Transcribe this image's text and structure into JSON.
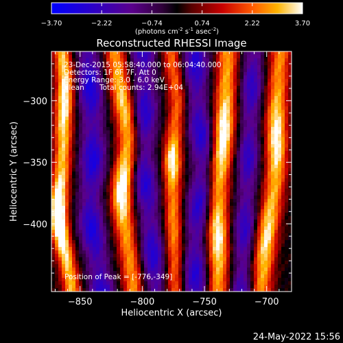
{
  "chart_data": {
    "type": "heatmap",
    "title": "Reconstructed RHESSI Image",
    "xlabel": "Heliocentric X (arcsec)",
    "ylabel": "Heliocentric Y (arcsec)",
    "xlim": [
      -873,
      -680
    ],
    "ylim": [
      -455,
      -260
    ],
    "x_ticks": [
      -850,
      -800,
      -750,
      -700
    ],
    "y_ticks": [
      -300,
      -350,
      -400
    ],
    "colorbar": {
      "range": [
        -3.7,
        3.7
      ],
      "tick_labels": [
        "-3.70",
        "-2.22",
        "-0.74",
        "0.74",
        "2.22",
        "3.70"
      ],
      "unit_parts": [
        "(photons cm",
        "-2",
        " s",
        "-1",
        " asec",
        "-2",
        ")"
      ]
    },
    "annotations": [
      "23-Dec-2015 05:58:40.000 to 06:04:40.000",
      "Detectors: 1F 6F 7F, Att 0",
      "Energy Range: 3.0 - 6.0 keV",
      "Clean",
      "Total counts: 2.94E+04"
    ],
    "peak_label": "Position of Peak = [-776,-349]",
    "peak": {
      "x": -776,
      "y": -349,
      "value": 3.7
    },
    "bands": [
      {
        "x": -862,
        "amp": 3.0,
        "sigma": 5,
        "tilt": -0.06,
        "bends": [
          [
            -395,
            -8,
            40
          ],
          [
            -280,
            4,
            30
          ]
        ],
        "bumps": [
          [
            -395,
            0.7,
            28
          ],
          [
            -300,
            0.3,
            30
          ]
        ]
      },
      {
        "x": -838,
        "amp": -2.4,
        "sigma": 7,
        "tilt": -0.06,
        "bends": [
          [
            -395,
            -6,
            40
          ]
        ],
        "bumps": []
      },
      {
        "x": -815,
        "amp": 2.7,
        "sigma": 6,
        "tilt": -0.08,
        "bends": [
          [
            -330,
            6,
            40
          ],
          [
            -380,
            -5,
            40
          ]
        ],
        "bumps": [
          [
            -370,
            0.6,
            25
          ],
          [
            -305,
            0.3,
            25
          ]
        ]
      },
      {
        "x": -795,
        "amp": -2.2,
        "sigma": 7,
        "tilt": -0.05,
        "bends": [
          [
            -355,
            -4,
            40
          ]
        ],
        "bumps": []
      },
      {
        "x": -776,
        "amp": 2.3,
        "sigma": 5,
        "tilt": -0.02,
        "bends": [
          [
            -300,
            5,
            30
          ]
        ],
        "bumps": [
          [
            -349,
            0.7,
            18
          ],
          [
            -400,
            0.2,
            25
          ]
        ]
      },
      {
        "x": -757,
        "amp": -2.2,
        "sigma": 7,
        "tilt": 0.0,
        "bends": [
          [
            -350,
            6,
            40
          ]
        ],
        "bumps": []
      },
      {
        "x": -735,
        "amp": 2.8,
        "sigma": 6,
        "tilt": 0.04,
        "bends": [
          [
            -380,
            -3,
            45
          ]
        ],
        "bumps": [
          [
            -330,
            0.5,
            30
          ],
          [
            -410,
            0.4,
            25
          ]
        ]
      },
      {
        "x": -715,
        "amp": -2.0,
        "sigma": 6,
        "tilt": 0.05,
        "bends": [],
        "bumps": []
      },
      {
        "x": -696,
        "amp": 2.6,
        "sigma": 6,
        "tilt": 0.08,
        "bends": [
          [
            -360,
            4,
            40
          ]
        ],
        "bumps": [
          [
            -330,
            0.5,
            30
          ],
          [
            -410,
            0.4,
            30
          ]
        ]
      }
    ]
  },
  "timestamp": "24-May-2022 15:56"
}
